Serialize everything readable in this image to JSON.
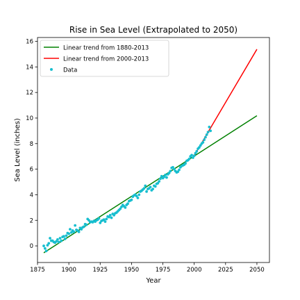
{
  "chart_data": {
    "type": "scatter",
    "title": "Rise in Sea Level (Extrapolated to 2050)",
    "xlabel": "Year",
    "ylabel": "Sea Level (inches)",
    "xlim": [
      1875,
      2060
    ],
    "ylim": [
      -1.3,
      16.3
    ],
    "xticks": [
      1875,
      1900,
      1925,
      1950,
      1975,
      2000,
      2025,
      2050
    ],
    "yticks": [
      0,
      2,
      4,
      6,
      8,
      10,
      12,
      14,
      16
    ],
    "grid": false,
    "legend_position": "top-left",
    "series": [
      {
        "name": "Linear trend from 1880-2013",
        "kind": "line",
        "color": "#008000",
        "x": [
          1880,
          2050
        ],
        "y": [
          -0.54,
          10.18
        ]
      },
      {
        "name": "Linear trend from 2000-2013",
        "kind": "line",
        "color": "#ff0000",
        "x": [
          2000,
          2050
        ],
        "y": [
          7.06,
          15.38
        ]
      },
      {
        "name": "Data",
        "kind": "scatter",
        "color": "#17becf",
        "x": [
          1880,
          1881,
          1882,
          1883,
          1884,
          1885,
          1886,
          1887,
          1888,
          1889,
          1890,
          1891,
          1892,
          1893,
          1894,
          1895,
          1896,
          1897,
          1898,
          1899,
          1900,
          1901,
          1902,
          1903,
          1904,
          1905,
          1906,
          1907,
          1908,
          1909,
          1910,
          1911,
          1912,
          1913,
          1914,
          1915,
          1916,
          1917,
          1918,
          1919,
          1920,
          1921,
          1922,
          1923,
          1924,
          1925,
          1926,
          1927,
          1928,
          1929,
          1930,
          1931,
          1932,
          1933,
          1934,
          1935,
          1936,
          1937,
          1938,
          1939,
          1940,
          1941,
          1942,
          1943,
          1944,
          1945,
          1946,
          1947,
          1948,
          1949,
          1950,
          1951,
          1952,
          1953,
          1954,
          1955,
          1956,
          1957,
          1958,
          1959,
          1960,
          1961,
          1962,
          1963,
          1964,
          1965,
          1966,
          1967,
          1968,
          1969,
          1970,
          1971,
          1972,
          1973,
          1974,
          1975,
          1976,
          1977,
          1978,
          1979,
          1980,
          1981,
          1982,
          1983,
          1984,
          1985,
          1986,
          1987,
          1988,
          1989,
          1990,
          1991,
          1992,
          1993,
          1994,
          1995,
          1996,
          1997,
          1998,
          1999,
          2000,
          2001,
          2002,
          2003,
          2004,
          2005,
          2006,
          2007,
          2008,
          2009,
          2010,
          2011,
          2012,
          2013
        ],
        "y": [
          0.0,
          -0.2,
          -0.4,
          0.05,
          0.2,
          0.6,
          0.4,
          0.4,
          0.3,
          0.25,
          0.35,
          0.5,
          0.3,
          0.6,
          0.4,
          0.7,
          0.75,
          0.55,
          0.8,
          1.0,
          0.95,
          1.3,
          1.05,
          1.2,
          1.1,
          1.6,
          1.25,
          1.2,
          1.1,
          1.4,
          1.3,
          1.45,
          1.5,
          1.7,
          1.65,
          2.1,
          2.0,
          1.85,
          1.9,
          1.85,
          1.95,
          1.9,
          2.0,
          2.05,
          2.15,
          1.8,
          1.95,
          2.0,
          2.05,
          1.9,
          2.1,
          2.3,
          2.25,
          2.4,
          2.2,
          2.5,
          2.4,
          2.55,
          2.6,
          2.7,
          2.8,
          2.9,
          3.05,
          3.2,
          3.1,
          3.0,
          3.2,
          3.3,
          3.5,
          3.55,
          3.6,
          3.85,
          3.95,
          4.0,
          3.9,
          3.75,
          4.0,
          4.25,
          4.3,
          4.4,
          4.5,
          4.7,
          4.25,
          4.45,
          4.5,
          4.6,
          4.35,
          4.45,
          4.7,
          4.65,
          4.85,
          4.9,
          5.05,
          5.25,
          5.45,
          5.3,
          5.4,
          5.55,
          5.35,
          5.6,
          5.7,
          5.85,
          6.1,
          6.15,
          6.0,
          5.85,
          5.75,
          5.8,
          5.95,
          6.15,
          6.25,
          6.3,
          6.35,
          6.45,
          6.65,
          6.7,
          6.8,
          7.0,
          7.1,
          6.9,
          7.05,
          7.25,
          7.4,
          7.6,
          7.7,
          7.85,
          8.0,
          8.1,
          8.3,
          8.5,
          8.7,
          8.9,
          9.3,
          9.0
        ]
      }
    ]
  }
}
